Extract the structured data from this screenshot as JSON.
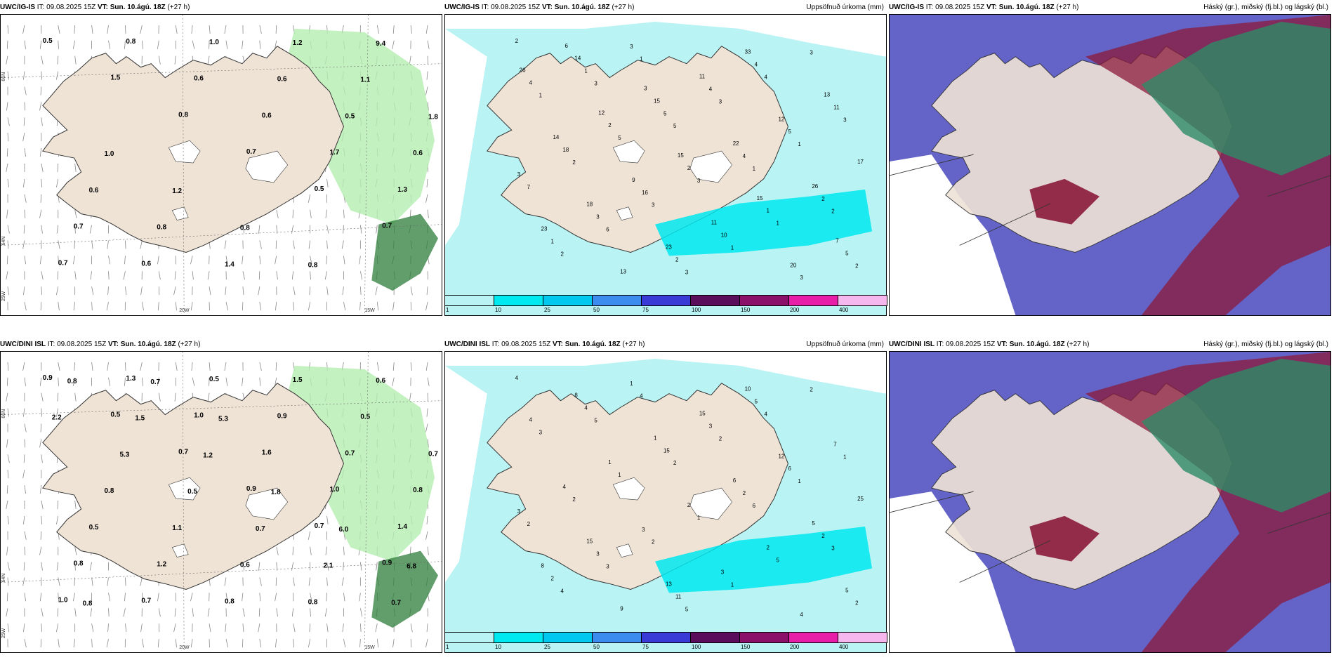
{
  "colors": {
    "land": "#efe3d6",
    "sea": "#ffffff",
    "precip_light": "#b9f3f3",
    "precip_cyan": "#00e8f0",
    "rain_green": "#b5eeb0",
    "rain_dark": "#2e7d3a",
    "cloud_high": "#2e8b68",
    "cloud_mid": "#6464c8",
    "cloud_low": "#8b1a3a"
  },
  "colorbar": {
    "ticks": [
      "1",
      "10",
      "25",
      "50",
      "75",
      "100",
      "150",
      "200",
      "400"
    ],
    "colors": [
      "#b9f3f3",
      "#00e8f0",
      "#00c8ee",
      "#3c8cf0",
      "#3a3ad6",
      "#5a0d5a",
      "#8a106a",
      "#e61ea8",
      "#f6b6ee"
    ]
  },
  "rows": [
    {
      "model": "UWC/IG-IS",
      "issue": "IT: 09.08.2025 15Z",
      "vt_label": "VT:",
      "vt_value": "Sun. 10.ágú. 18Z",
      "lead": "(+27 h)",
      "panels": [
        {
          "right_title": "",
          "lat_labels": [
            "66N",
            "64N",
            "25W"
          ],
          "lon_labels": [
            "20W",
            "15W"
          ],
          "values": [
            "0.5",
            "1.5",
            "0.8",
            "0.7",
            "0.5",
            "0.7",
            "0.7",
            "0.8",
            "0.6",
            "0.6",
            "1.7",
            "1.3",
            "0.7",
            "0.6",
            "1.0",
            "0.6",
            "0.5",
            "0.6",
            "0.6",
            "0.8",
            "1.4",
            "1.2",
            "1.1",
            "1.8",
            "1.0",
            "1.2",
            "0.8",
            "0.8",
            "9.4"
          ]
        },
        {
          "right_title": "Uppsöfnuð úrkoma (mm)",
          "values": [
            "2",
            "3",
            "5",
            "1",
            "2",
            "2",
            "1",
            "3",
            "1",
            "7",
            "6",
            "3",
            "4",
            "3",
            "2",
            "3",
            "1",
            "3",
            "1",
            "5",
            "3",
            "1",
            "2",
            "1",
            "5",
            "4",
            "2",
            "1",
            "3",
            "4",
            "5",
            "3",
            "3",
            "2",
            "4",
            "11",
            "18",
            "16",
            "10",
            "3",
            "4",
            "2",
            "2",
            "1",
            "5",
            "14",
            "15",
            "22",
            "26",
            "23",
            "13",
            "11",
            "12",
            "17",
            "18",
            "23",
            "33",
            "13",
            "14",
            "9",
            "11",
            "20",
            "26",
            "12",
            "15",
            "15",
            "7",
            "6",
            "3"
          ]
        },
        {
          "right_title": "Háský (gr.), miðský (fj.bl.) og lágský (bl.)"
        }
      ]
    },
    {
      "model": "UWC/DINI ISL",
      "issue": "IT: 09.08.2025 15Z",
      "vt_label": "VT:",
      "vt_value": "Sun. 10.ágú. 18Z",
      "lead": "(+27 h)",
      "panels": [
        {
          "right_title": "",
          "lat_labels": [
            "66N",
            "64N",
            "25W"
          ],
          "lon_labels": [
            "20W",
            "15W"
          ],
          "values": [
            "0.9",
            "0.5",
            "0.7",
            "0.9",
            "0.7",
            "0.9",
            "1.0",
            "1.3",
            "1.0",
            "1.6",
            "1.0",
            "1.4",
            "0.8",
            "0.7",
            "0.5",
            "0.9",
            "0.7",
            "0.8",
            "0.5",
            "1.2",
            "0.8",
            "1.5",
            "0.5",
            "0.7",
            "0.8",
            "1.1",
            "0.6",
            "0.8",
            "0.6",
            "2.2",
            "5.3",
            "0.5",
            "0.7",
            "2.1",
            "0.7",
            "0.8",
            "1.5",
            "1.2",
            "1.8",
            "6.0",
            "6.8",
            "0.8",
            "0.7",
            "5.3"
          ]
        },
        {
          "right_title": "Uppsöfnuð úrkoma (mm)",
          "values": [
            "4",
            "5",
            "2",
            "6",
            "3",
            "4",
            "4",
            "2",
            "1",
            "2",
            "3",
            "5",
            "4",
            "1",
            "2",
            "2",
            "1",
            "2",
            "3",
            "1",
            "1",
            "5",
            "2",
            "4",
            "15",
            "2",
            "2",
            "2",
            "1",
            "3",
            "6",
            "3",
            "3",
            "11",
            "5",
            "7",
            "4",
            "3",
            "3",
            "4",
            "4",
            "1",
            "2",
            "2",
            "5",
            "8",
            "1",
            "6",
            "5",
            "8",
            "9",
            "15",
            "12",
            "25",
            "15",
            "13",
            "10"
          ]
        },
        {
          "right_title": "Háský (gr.), miðský (fj.bl.) og lágský (bl.)"
        }
      ]
    }
  ]
}
